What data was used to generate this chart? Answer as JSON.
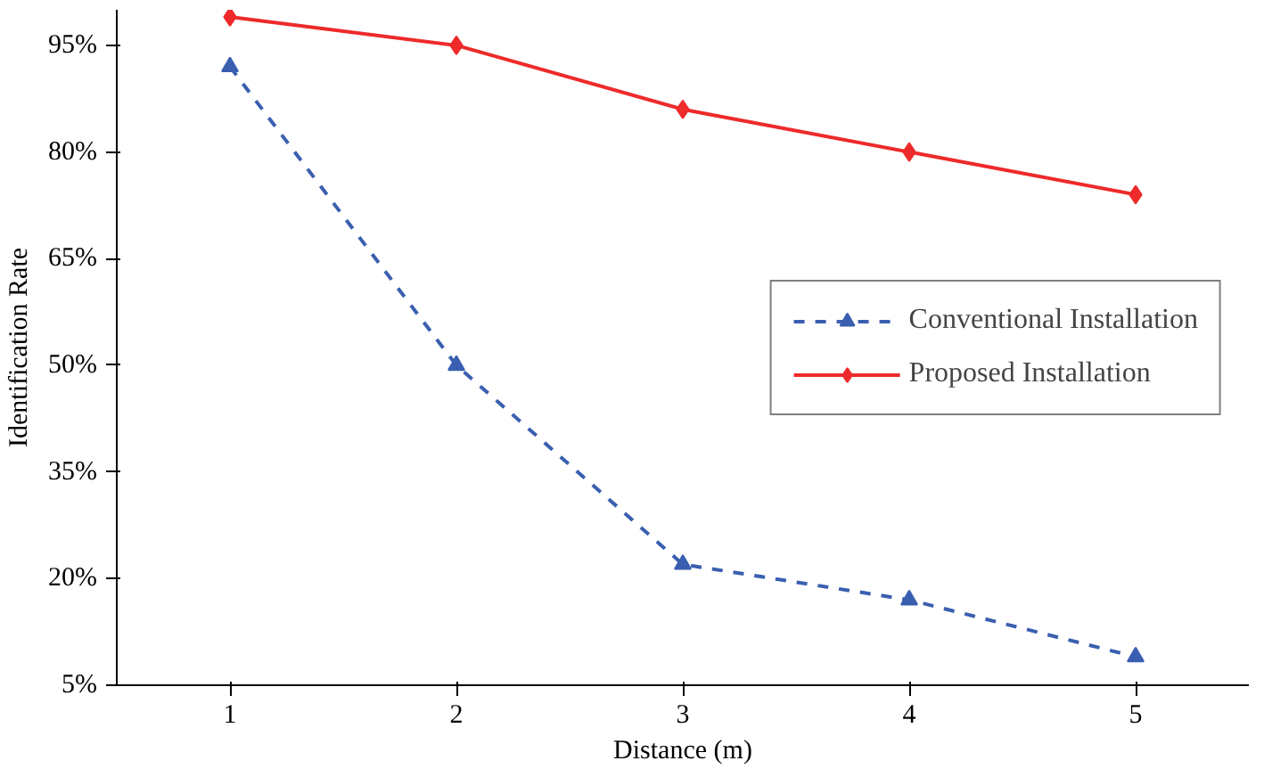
{
  "chart_data": {
    "type": "line",
    "xlabel": "Distance (m)",
    "ylabel": "Identification Rate",
    "x": [
      1,
      2,
      3,
      4,
      5
    ],
    "xlim": [
      0.5,
      5.5
    ],
    "xticks": [
      1,
      2,
      3,
      4,
      5
    ],
    "ylim": [
      5,
      100
    ],
    "yticks": [
      {
        "value": 5,
        "label": "5%"
      },
      {
        "value": 20,
        "label": "20%"
      },
      {
        "value": 35,
        "label": "35%"
      },
      {
        "value": 50,
        "label": "50%"
      },
      {
        "value": 65,
        "label": "65%"
      },
      {
        "value": 80,
        "label": "80%"
      },
      {
        "value": 95,
        "label": "95%"
      }
    ],
    "legend": "right",
    "grid": false,
    "series": [
      {
        "name": "Conventional Installation",
        "color": "#3a5fb0",
        "values": [
          92,
          50,
          22,
          17,
          9
        ],
        "marker": "triangle",
        "line_style": "dashed"
      },
      {
        "name": "Proposed Installation",
        "color": "#ee2a2a",
        "values": [
          99,
          95,
          86,
          80,
          74
        ],
        "marker": "diamond",
        "line_style": "solid"
      }
    ]
  }
}
